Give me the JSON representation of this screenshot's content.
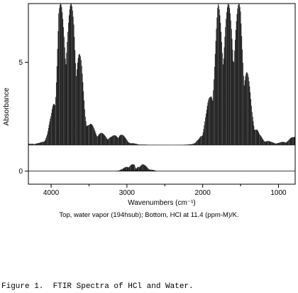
{
  "chart_data": {
    "type": "line",
    "xlabel": "Wavenumbers (cm⁻¹)",
    "ylabel": "Absorbance",
    "xlim": [
      4300,
      780
    ],
    "x_reversed": true,
    "ylim": [
      -0.6,
      7.7
    ],
    "xticks": [
      4000,
      3000,
      2000,
      1000
    ],
    "yticks": [
      0,
      5
    ],
    "legend": "none",
    "grid": false,
    "series": [
      {
        "offset": 1.2,
        "points": [
          [
            4300,
            1.25
          ],
          [
            4150,
            1.3
          ],
          [
            4100,
            1.4
          ],
          [
            4050,
            1.8
          ],
          [
            4000,
            2.6
          ],
          [
            3950,
            4.2
          ],
          [
            3900,
            7.7
          ],
          [
            3850,
            7.7
          ],
          [
            3800,
            7.7
          ],
          [
            3750,
            7.7
          ],
          [
            3700,
            7.7
          ],
          [
            3650,
            6.5
          ],
          [
            3600,
            5.0
          ],
          [
            3550,
            3.0
          ],
          [
            3500,
            2.3
          ],
          [
            3400,
            1.9
          ],
          [
            3300,
            1.7
          ],
          [
            3200,
            1.6
          ],
          [
            3100,
            1.8
          ],
          [
            3000,
            1.5
          ],
          [
            2950,
            1.3
          ],
          [
            2800,
            1.22
          ],
          [
            2400,
            1.2
          ],
          [
            2200,
            1.22
          ],
          [
            2100,
            1.3
          ],
          [
            2050,
            1.5
          ],
          [
            2000,
            2.0
          ],
          [
            1950,
            2.8
          ],
          [
            1900,
            3.8
          ],
          [
            1850,
            5.5
          ],
          [
            1800,
            7.7
          ],
          [
            1750,
            7.7
          ],
          [
            1700,
            7.7
          ],
          [
            1650,
            7.7
          ],
          [
            1600,
            7.7
          ],
          [
            1550,
            7.7
          ],
          [
            1500,
            7.7
          ],
          [
            1450,
            6.0
          ],
          [
            1400,
            4.5
          ],
          [
            1350,
            3.0
          ],
          [
            1300,
            2.2
          ],
          [
            1250,
            1.7
          ],
          [
            1200,
            1.5
          ],
          [
            1100,
            1.35
          ],
          [
            1000,
            1.3
          ],
          [
            900,
            1.4
          ],
          [
            800,
            1.6
          ],
          [
            780,
            1.7
          ]
        ]
      },
      {
        "offset": 0,
        "points": [
          [
            4300,
            0
          ],
          [
            3150,
            0
          ],
          [
            3100,
            0.05
          ],
          [
            3050,
            0.12
          ],
          [
            3000,
            0.25
          ],
          [
            2950,
            0.35
          ],
          [
            2900,
            0.3
          ],
          [
            2880,
            0.1
          ],
          [
            2850,
            0.3
          ],
          [
            2800,
            0.35
          ],
          [
            2750,
            0.25
          ],
          [
            2700,
            0.12
          ],
          [
            2650,
            0.05
          ],
          [
            2600,
            0
          ],
          [
            780,
            0
          ]
        ]
      }
    ]
  },
  "caption": "Top, water vapor (194hsub);  Bottom, HCl at 11.4 (ppm-M)/K.",
  "figure_caption": "Figure 1.  FTIR Spectra of HCl and Water."
}
